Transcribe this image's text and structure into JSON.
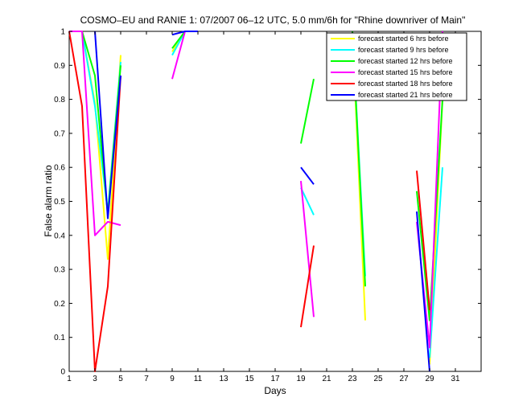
{
  "chart_data": {
    "type": "line",
    "title": "COSMO–EU and RANIE 1: 07/2007 06–12 UTC, 5.0 mm/6h for \"Rhine downriver of Main\"",
    "xlabel": "Days",
    "ylabel": "False alarm ratio",
    "xlim": [
      1,
      33
    ],
    "ylim": [
      0,
      1
    ],
    "xticks": [
      1,
      3,
      5,
      7,
      9,
      11,
      13,
      15,
      17,
      19,
      21,
      23,
      25,
      27,
      29,
      31
    ],
    "yticks": [
      0,
      0.1,
      0.2,
      0.3,
      0.4,
      0.5,
      0.6,
      0.7,
      0.8,
      0.9,
      1
    ],
    "ytick_labels": [
      "0",
      "0.1",
      "0.2",
      "0.3",
      "0.4",
      "0.5",
      "0.6",
      "0.7",
      "0.8",
      "0.9",
      "1"
    ],
    "grid": false,
    "legend_position": "top-right",
    "series": [
      {
        "name": "forecast started 6 hrs before",
        "color": "#ffff00",
        "segments": [
          [
            [
              1,
              1
            ],
            [
              2,
              1
            ],
            [
              3,
              0.79
            ],
            [
              4,
              0.33
            ],
            [
              5,
              0.93
            ]
          ],
          [
            [
              9,
              0.94
            ],
            [
              10,
              1
            ],
            [
              11,
              1
            ]
          ],
          [
            [
              23,
              1
            ],
            [
              24,
              0.15
            ]
          ],
          [
            [
              29,
              0.02
            ],
            [
              30,
              0.8
            ]
          ]
        ]
      },
      {
        "name": "forecast started 9 hrs before",
        "color": "#00ffff",
        "segments": [
          [
            [
              1,
              1
            ],
            [
              2,
              1
            ],
            [
              3,
              0.78
            ],
            [
              4,
              0.47
            ],
            [
              5,
              0.91
            ]
          ],
          [
            [
              9,
              0.93
            ],
            [
              10,
              1
            ],
            [
              11,
              1
            ]
          ],
          [
            [
              19,
              0.54
            ],
            [
              20,
              0.46
            ]
          ],
          [
            [
              23,
              1
            ],
            [
              24,
              0.28
            ]
          ],
          [
            [
              29,
              0.04
            ],
            [
              30,
              0.6
            ]
          ]
        ]
      },
      {
        "name": "forecast started 12 hrs before",
        "color": "#00ff00",
        "segments": [
          [
            [
              1,
              1
            ],
            [
              2,
              1
            ],
            [
              3,
              0.87
            ],
            [
              4,
              0.46
            ],
            [
              5,
              0.9
            ]
          ],
          [
            [
              9,
              0.95
            ],
            [
              10,
              1
            ],
            [
              11,
              1
            ]
          ],
          [
            [
              19,
              0.67
            ],
            [
              20,
              0.86
            ]
          ],
          [
            [
              23,
              1
            ],
            [
              24,
              0.25
            ]
          ],
          [
            [
              28,
              0.53
            ],
            [
              29,
              0.15
            ],
            [
              30,
              0.8
            ]
          ]
        ]
      },
      {
        "name": "forecast started 15 hrs before",
        "color": "#ff00ff",
        "segments": [
          [
            [
              1,
              1
            ],
            [
              2,
              1
            ],
            [
              3,
              0.4
            ],
            [
              4,
              0.44
            ],
            [
              5,
              0.43
            ]
          ],
          [
            [
              9,
              0.86
            ],
            [
              10,
              1
            ],
            [
              11,
              1
            ]
          ],
          [
            [
              19,
              0.56
            ],
            [
              20,
              0.16
            ]
          ],
          [
            [
              28,
              0.44
            ],
            [
              29,
              0.07
            ],
            [
              30,
              1
            ]
          ]
        ]
      },
      {
        "name": "forecast started 18 hrs before",
        "color": "#ff0000",
        "segments": [
          [
            [
              1,
              1
            ],
            [
              2,
              0.78
            ],
            [
              3,
              0
            ],
            [
              4,
              0.25
            ],
            [
              5,
              0.87
            ]
          ],
          [
            [
              19,
              0.13
            ],
            [
              20,
              0.37
            ]
          ],
          [
            [
              28,
              0.59
            ],
            [
              29,
              0.18
            ]
          ]
        ]
      },
      {
        "name": "forecast started 21 hrs before",
        "color": "#0000ff",
        "segments": [
          [
            [
              3,
              1
            ],
            [
              4,
              0.45
            ],
            [
              5,
              0.87
            ]
          ],
          [
            [
              9,
              0.99
            ],
            [
              10,
              1
            ],
            [
              11,
              1
            ]
          ],
          [
            [
              19,
              0.6
            ],
            [
              20,
              0.55
            ]
          ],
          [
            [
              28,
              0.47
            ],
            [
              29,
              0
            ]
          ]
        ]
      }
    ]
  }
}
